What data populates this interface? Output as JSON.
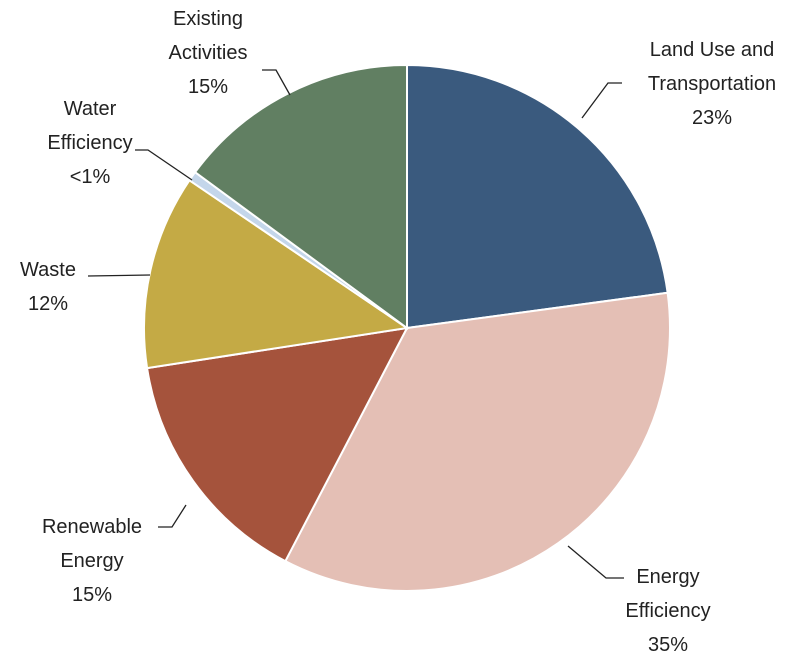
{
  "chart_data": {
    "type": "pie",
    "categories": [
      "Land Use and Transportation",
      "Energy Efficiency",
      "Renewable Energy",
      "Waste",
      "Water Efficiency",
      "Existing Activities"
    ],
    "values": [
      23,
      35,
      15,
      12,
      0.6,
      15
    ],
    "value_labels": [
      "23%",
      "35%",
      "15%",
      "12%",
      "<1%",
      "15%"
    ],
    "colors": [
      "#3a5a7e",
      "#e4bfb5",
      "#a5533c",
      "#c4aa45",
      "#c4d6ea",
      "#617f62"
    ]
  }
}
